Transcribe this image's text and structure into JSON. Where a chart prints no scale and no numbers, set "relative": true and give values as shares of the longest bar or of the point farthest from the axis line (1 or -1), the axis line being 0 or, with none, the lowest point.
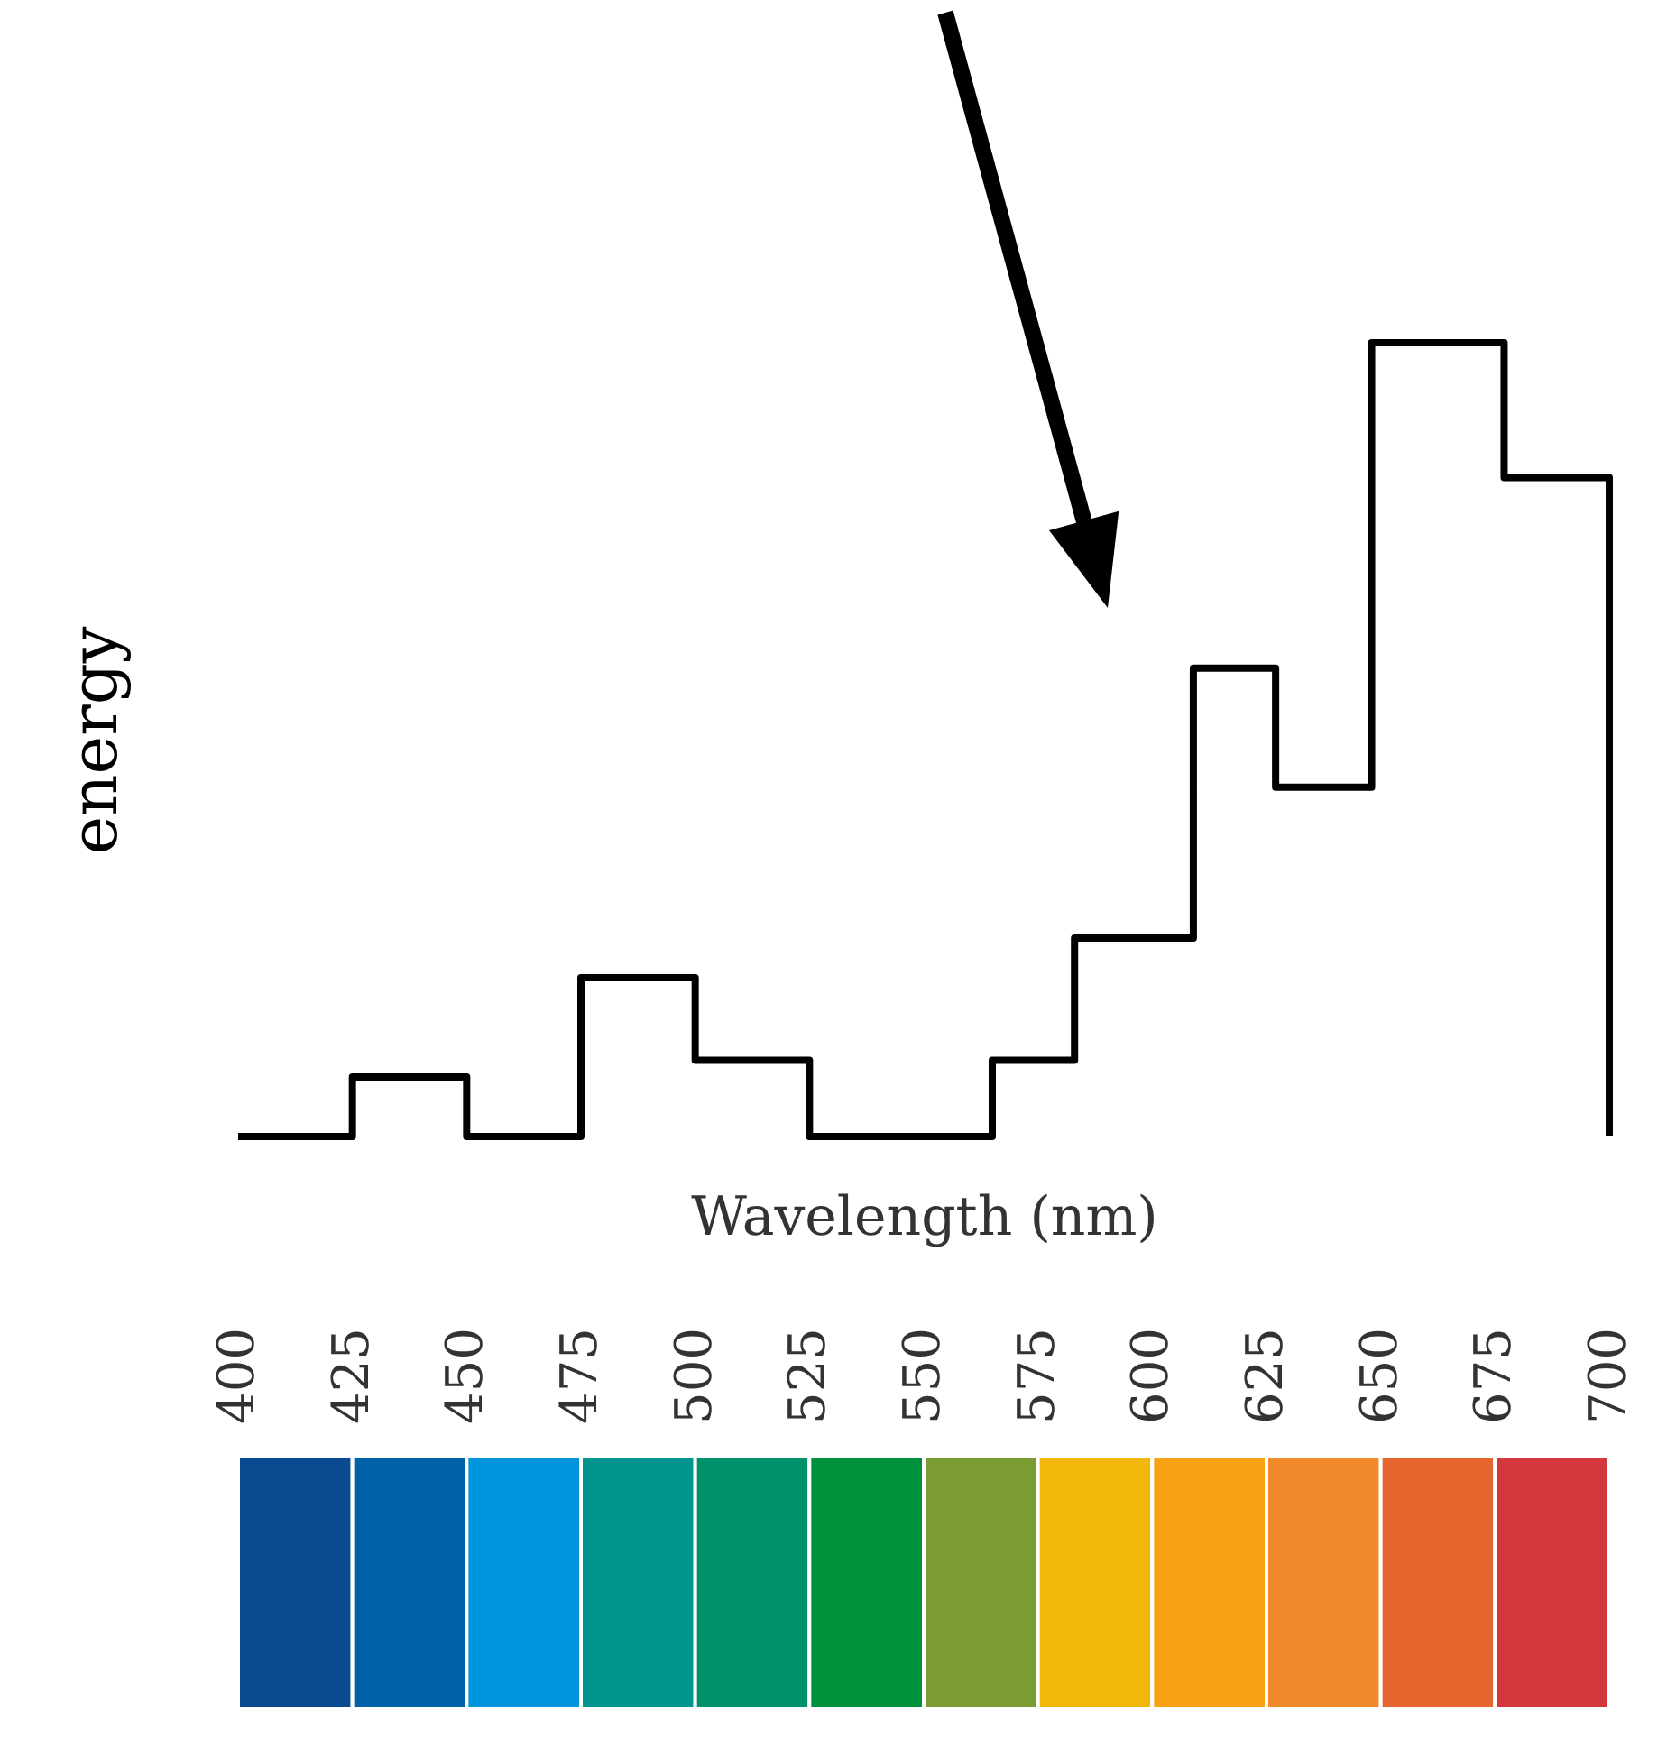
{
  "chart_data": {
    "type": "step",
    "relative": true,
    "xlabel": "Wavelength (nm)",
    "ylabel": "energy",
    "xlim": [
      400,
      700
    ],
    "xticks": [
      400,
      425,
      450,
      475,
      500,
      525,
      550,
      575,
      600,
      625,
      650,
      675,
      700
    ],
    "x": [
      400,
      425,
      450,
      475,
      500,
      525,
      565,
      583,
      609,
      627,
      648,
      677,
      700
    ],
    "series": [
      {
        "color": "#000000",
        "values": [
          0,
          0.075,
          0,
          0.2,
          0.096,
          0,
          0.096,
          0.25,
          0.59,
          0.44,
          1,
          0.83,
          0
        ]
      }
    ],
    "grid": false,
    "marker": "none",
    "line_style": "solid"
  }
}
